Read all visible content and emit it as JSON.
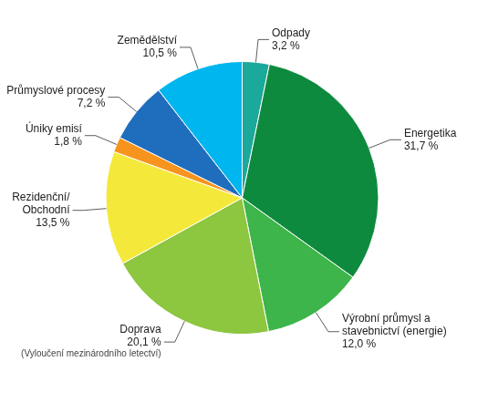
{
  "chart_data": {
    "type": "pie",
    "categories": [
      "Odpady",
      "Energetika",
      "Výrobní průmysl a stavebnictví (energie)",
      "Doprava",
      "Rezidenční/Obchodní",
      "Úniky emisí",
      "Průmyslové procesy",
      "Zemědělství"
    ],
    "values": [
      3.2,
      31.7,
      12.0,
      20.1,
      13.5,
      1.8,
      7.2,
      10.5
    ],
    "value_labels": [
      "3,2 %",
      "31,7 %",
      "12,0 %",
      "20,1 %",
      "13,5 %",
      "1,8 %",
      "7,2 %",
      "10,5 %"
    ],
    "colors": [
      "#1aa99b",
      "#0e8a3e",
      "#3db54a",
      "#8dc63f",
      "#f4e93b",
      "#f7941d",
      "#1f6dbd",
      "#00b6ee"
    ],
    "data_labels": true,
    "annotations": [
      {
        "category": "Doprava",
        "text": "(Vyloučení mezinárodního letectví)"
      }
    ]
  }
}
